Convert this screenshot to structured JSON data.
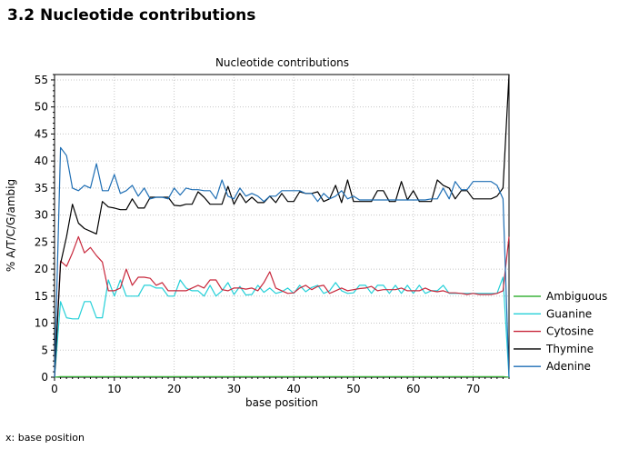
{
  "heading": "3.2 Nucleotide contributions",
  "footnote": "x: base position",
  "chart_data": {
    "type": "line",
    "title": "Nucleotide contributions",
    "xlabel": "base position",
    "ylabel": "% A/T/C/G/ambig",
    "xlim": [
      0,
      76
    ],
    "ylim": [
      0,
      56
    ],
    "xticks": [
      0,
      10,
      20,
      30,
      40,
      50,
      60,
      70
    ],
    "yticks": [
      0,
      5,
      10,
      15,
      20,
      25,
      30,
      35,
      40,
      45,
      50,
      55
    ],
    "grid": true,
    "legend": "bottom-right",
    "x": [
      0,
      1,
      2,
      3,
      4,
      5,
      6,
      7,
      8,
      9,
      10,
      11,
      12,
      13,
      14,
      15,
      16,
      17,
      18,
      19,
      20,
      21,
      22,
      23,
      24,
      25,
      26,
      27,
      28,
      29,
      30,
      31,
      32,
      33,
      34,
      35,
      36,
      37,
      38,
      39,
      40,
      41,
      42,
      43,
      44,
      45,
      46,
      47,
      48,
      49,
      50,
      51,
      52,
      53,
      54,
      55,
      56,
      57,
      58,
      59,
      60,
      61,
      62,
      63,
      64,
      65,
      66,
      67,
      68,
      69,
      70,
      71,
      72,
      73,
      74,
      75,
      76
    ],
    "series": [
      {
        "name": "Ambiguous",
        "color": "#3cb43c",
        "values": [
          0,
          0.1,
          0.1,
          0.1,
          0.1,
          0.1,
          0.1,
          0.1,
          0.1,
          0.1,
          0.1,
          0.1,
          0.1,
          0.1,
          0.1,
          0.1,
          0.1,
          0.1,
          0.1,
          0.1,
          0.1,
          0.1,
          0.1,
          0.1,
          0.1,
          0.1,
          0.1,
          0.1,
          0.1,
          0.1,
          0.1,
          0.1,
          0.1,
          0.1,
          0.1,
          0.1,
          0.1,
          0.1,
          0.1,
          0.1,
          0.1,
          0.1,
          0.1,
          0.1,
          0.1,
          0.1,
          0.1,
          0.1,
          0.1,
          0.1,
          0.1,
          0.1,
          0.1,
          0.1,
          0.1,
          0.1,
          0.1,
          0.1,
          0.1,
          0.1,
          0.1,
          0.1,
          0.1,
          0.1,
          0.1,
          0.1,
          0.1,
          0.1,
          0.1,
          0.1,
          0.1,
          0.1,
          0.1,
          0.1,
          0.1,
          0.1,
          0
        ]
      },
      {
        "name": "Guanine",
        "color": "#25d0d8",
        "values": [
          0,
          14,
          11,
          10.8,
          10.8,
          14,
          14,
          11,
          11,
          18,
          15,
          18,
          15,
          15,
          15,
          17,
          17,
          16.5,
          16.5,
          15,
          15,
          18,
          16.5,
          16,
          16,
          15,
          17,
          15,
          16,
          17.5,
          15.3,
          16.8,
          15.2,
          15.3,
          17,
          15.7,
          16.5,
          15.5,
          15.8,
          16.5,
          15.5,
          17,
          15.8,
          16.6,
          17,
          15.5,
          16,
          17.5,
          16,
          15.5,
          15.6,
          17,
          17,
          15.5,
          17,
          17,
          15.5,
          17,
          15.5,
          17,
          15.5,
          17,
          15.5,
          16,
          16,
          17,
          15.5,
          15.5,
          15.5,
          15.5,
          15.5,
          15.5,
          15.5,
          15.5,
          15.5,
          18.5,
          0
        ]
      },
      {
        "name": "Cytosine",
        "color": "#c8283c",
        "values": [
          0,
          21.5,
          20.5,
          23,
          26,
          23,
          24,
          22.5,
          21.3,
          16,
          16,
          16.5,
          20,
          17,
          18.5,
          18.5,
          18.3,
          17,
          17.5,
          16,
          16,
          16,
          16,
          16.5,
          17,
          16.5,
          18,
          18,
          16.2,
          16,
          16.5,
          16.5,
          16.3,
          16.5,
          16,
          17.5,
          19.5,
          16.5,
          16,
          15.5,
          15.6,
          16.5,
          17,
          16.2,
          16.8,
          17,
          15.5,
          16,
          16.5,
          16,
          16.2,
          16.4,
          16.5,
          16.8,
          16,
          16.2,
          16.2,
          16.2,
          16.5,
          16,
          16,
          16,
          16.5,
          16,
          15.8,
          16,
          15.6,
          15.6,
          15.5,
          15.3,
          15.5,
          15.3,
          15.3,
          15.3,
          15.5,
          16,
          26
        ]
      },
      {
        "name": "Thymine",
        "color": "#000000",
        "values": [
          0,
          21,
          26,
          32,
          28.5,
          27.5,
          27,
          26.5,
          32.5,
          31.5,
          31.3,
          31,
          31,
          33,
          31.3,
          31.3,
          33.3,
          33.3,
          33.3,
          33.3,
          31.8,
          31.7,
          32,
          32,
          34.3,
          33.3,
          32,
          32,
          32,
          35.3,
          32,
          34,
          32.3,
          33.3,
          32.3,
          32.3,
          33.5,
          32.3,
          34,
          32.5,
          32.5,
          34.3,
          34,
          34,
          34.3,
          32.5,
          33,
          35.5,
          32.3,
          36.5,
          32.5,
          32.5,
          32.5,
          32.5,
          34.5,
          34.5,
          32.5,
          32.5,
          36.2,
          32.8,
          34.5,
          32.5,
          32.5,
          32.5,
          36.5,
          35.5,
          35,
          33,
          34.5,
          34.5,
          33,
          33,
          33,
          33,
          33.5,
          35,
          56
        ]
      },
      {
        "name": "Adenine",
        "color": "#1e6eb4",
        "values": [
          0,
          42.5,
          41,
          35,
          34.5,
          35.5,
          35,
          39.5,
          34.5,
          34.5,
          37.5,
          34,
          34.5,
          35.5,
          33.5,
          35,
          33,
          33.3,
          33.3,
          33,
          35,
          33.7,
          35,
          34.7,
          34.7,
          34.5,
          34.5,
          33,
          36.5,
          33.5,
          33,
          35,
          33.5,
          34,
          33.5,
          32.5,
          33.5,
          33.5,
          34.5,
          34.5,
          34.5,
          34.5,
          34,
          34,
          32.5,
          34,
          33,
          33.5,
          34.5,
          33,
          33.5,
          32.8,
          32.8,
          32.8,
          32.8,
          32.8,
          32.8,
          32.8,
          32.8,
          32.8,
          32.8,
          32.8,
          32.8,
          33,
          33,
          35,
          33,
          36.2,
          34.7,
          34.7,
          36.2,
          36.2,
          36.2,
          36.2,
          35.5,
          33,
          0
        ]
      }
    ]
  }
}
